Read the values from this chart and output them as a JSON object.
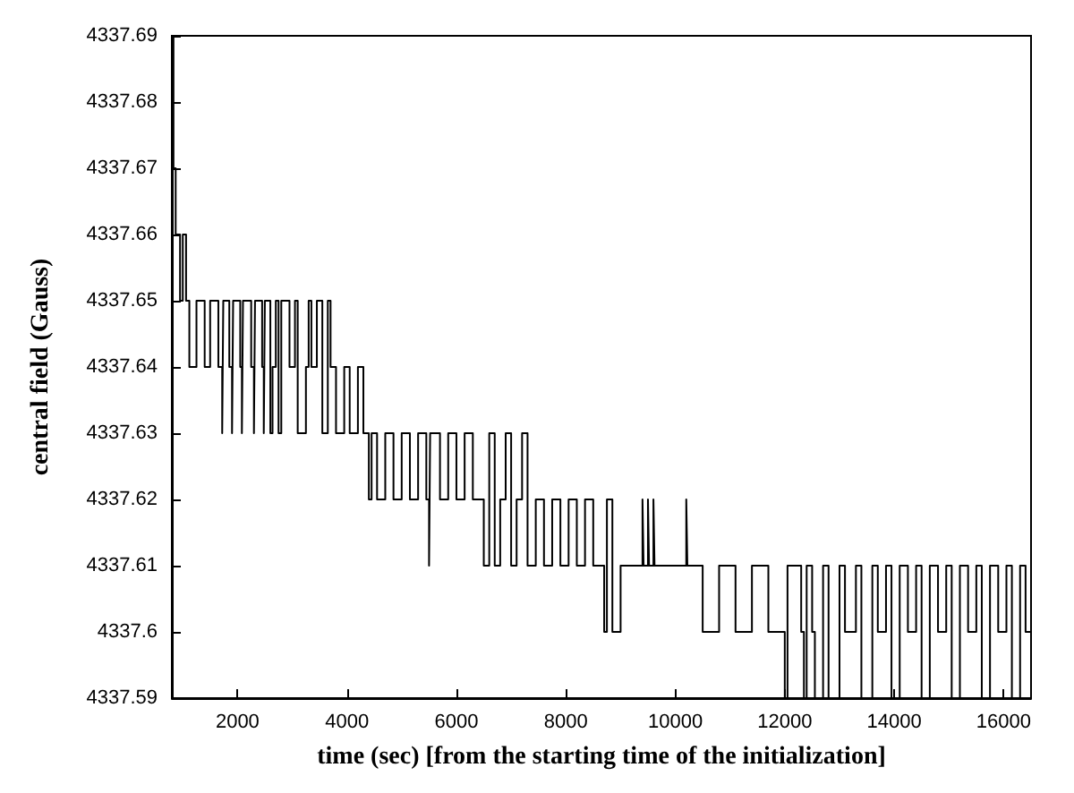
{
  "chart_data": {
    "type": "step",
    "xlabel": "time (sec) [from the starting time of the initialization]",
    "ylabel": "central field (Gauss)",
    "xlim": [
      800,
      16500
    ],
    "xticks": [
      2000,
      4000,
      6000,
      8000,
      10000,
      12000,
      14000,
      16000
    ],
    "ylim": [
      4337.59,
      4337.69
    ],
    "yticks": [
      4337.59,
      4337.6,
      4337.61,
      4337.62,
      4337.63,
      4337.64,
      4337.65,
      4337.66,
      4337.67,
      4337.68,
      4337.69
    ],
    "grid": false,
    "marker": "none",
    "line_style": "solid",
    "series": [
      {
        "color": "#000000",
        "x": [
          800,
          830,
          870,
          950,
          1000,
          1060,
          1120,
          1250,
          1400,
          1500,
          1650,
          1720,
          1740,
          1850,
          1900,
          1920,
          2050,
          2080,
          2100,
          2250,
          2300,
          2320,
          2450,
          2480,
          2500,
          2600,
          2640,
          2700,
          2750,
          2800,
          2950,
          3050,
          3100,
          3250,
          3300,
          3350,
          3450,
          3550,
          3650,
          3700,
          3800,
          3950,
          4050,
          4200,
          4300,
          4400,
          4450,
          4550,
          4700,
          4850,
          5000,
          5150,
          5300,
          5450,
          5500,
          5520,
          5700,
          5850,
          6000,
          6150,
          6300,
          6500,
          6600,
          6700,
          6800,
          6900,
          7000,
          7100,
          7200,
          7300,
          7450,
          7600,
          7750,
          7900,
          8050,
          8200,
          8350,
          8500,
          8700,
          8750,
          8850,
          9000,
          9400,
          9420,
          9500,
          9520,
          9600,
          9620,
          10200,
          10220,
          10500,
          10800,
          11100,
          11400,
          11700,
          12000,
          12050,
          12300,
          12350,
          12400,
          12500,
          12550,
          12700,
          12800,
          13000,
          13100,
          13300,
          13400,
          13600,
          13700,
          13850,
          13950,
          14100,
          14250,
          14400,
          14500,
          14650,
          14800,
          14950,
          15050,
          15200,
          15350,
          15500,
          15600,
          15750,
          15900,
          16050,
          16150,
          16300,
          16400,
          16500
        ],
        "values": [
          4337.69,
          4337.67,
          4337.66,
          4337.65,
          4337.66,
          4337.65,
          4337.64,
          4337.65,
          4337.64,
          4337.65,
          4337.64,
          4337.63,
          4337.65,
          4337.64,
          4337.63,
          4337.65,
          4337.64,
          4337.63,
          4337.65,
          4337.64,
          4337.63,
          4337.65,
          4337.64,
          4337.63,
          4337.65,
          4337.63,
          4337.64,
          4337.65,
          4337.63,
          4337.65,
          4337.64,
          4337.65,
          4337.63,
          4337.64,
          4337.65,
          4337.64,
          4337.65,
          4337.63,
          4337.65,
          4337.64,
          4337.63,
          4337.64,
          4337.63,
          4337.64,
          4337.63,
          4337.62,
          4337.63,
          4337.62,
          4337.63,
          4337.62,
          4337.63,
          4337.62,
          4337.63,
          4337.62,
          4337.61,
          4337.63,
          4337.62,
          4337.63,
          4337.62,
          4337.63,
          4337.62,
          4337.61,
          4337.63,
          4337.61,
          4337.62,
          4337.63,
          4337.61,
          4337.62,
          4337.63,
          4337.61,
          4337.62,
          4337.61,
          4337.62,
          4337.61,
          4337.62,
          4337.61,
          4337.62,
          4337.61,
          4337.6,
          4337.62,
          4337.6,
          4337.61,
          4337.62,
          4337.61,
          4337.62,
          4337.61,
          4337.62,
          4337.61,
          4337.62,
          4337.61,
          4337.6,
          4337.61,
          4337.6,
          4337.61,
          4337.6,
          4337.59,
          4337.61,
          4337.6,
          4337.59,
          4337.61,
          4337.6,
          4337.59,
          4337.61,
          4337.59,
          4337.61,
          4337.6,
          4337.61,
          4337.59,
          4337.61,
          4337.6,
          4337.61,
          4337.59,
          4337.61,
          4337.6,
          4337.61,
          4337.59,
          4337.61,
          4337.6,
          4337.61,
          4337.59,
          4337.61,
          4337.6,
          4337.61,
          4337.59,
          4337.61,
          4337.6,
          4337.61,
          4337.59,
          4337.61,
          4337.6,
          4337.59
        ]
      }
    ]
  }
}
